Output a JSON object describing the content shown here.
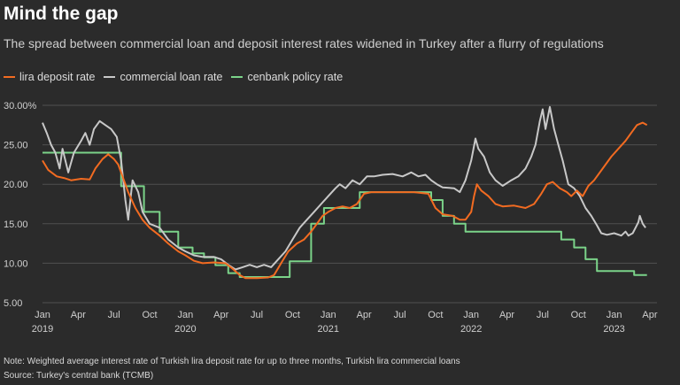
{
  "title": "Mind the gap",
  "subtitle": "The spread between commercial loan and deposit interest rates widened in Turkey after a flurry of regulations",
  "note": "Note: Weighted average interest rate of Turkish lira deposit rate for up to three months, Turkish lira commercial loans",
  "source": "Source: Turkey's central bank (TCMB)",
  "colors": {
    "background": "#2b2b2b",
    "deposit": "#f26b21",
    "loan": "#c8c8c8",
    "policy": "#7bd389",
    "grid": "#505050"
  },
  "chart_data": {
    "type": "line",
    "title": "Mind the gap",
    "xlabel": "",
    "ylabel": "",
    "ylim": [
      5,
      30
    ],
    "xlim": [
      2019.0,
      2023.3
    ],
    "grid": true,
    "legend_position": "top-left",
    "y_ticks": [
      "30.00%",
      "25.00",
      "20.00",
      "15.00",
      "10.00",
      "5.00"
    ],
    "x_ticks": [
      {
        "label": "Jan",
        "year": "2019",
        "x": 2019.0
      },
      {
        "label": "Apr",
        "year": "",
        "x": 2019.25
      },
      {
        "label": "Jul",
        "year": "",
        "x": 2019.5
      },
      {
        "label": "Oct",
        "year": "",
        "x": 2019.75
      },
      {
        "label": "Jan",
        "year": "2020",
        "x": 2020.0
      },
      {
        "label": "Apr",
        "year": "",
        "x": 2020.25
      },
      {
        "label": "Jul",
        "year": "",
        "x": 2020.5
      },
      {
        "label": "Oct",
        "year": "",
        "x": 2020.75
      },
      {
        "label": "Jan",
        "year": "2021",
        "x": 2021.0
      },
      {
        "label": "Apr",
        "year": "",
        "x": 2021.25
      },
      {
        "label": "Jul",
        "year": "",
        "x": 2021.5
      },
      {
        "label": "Oct",
        "year": "",
        "x": 2021.75
      },
      {
        "label": "Jan",
        "year": "2022",
        "x": 2022.0
      },
      {
        "label": "Apr",
        "year": "",
        "x": 2022.25
      },
      {
        "label": "Jul",
        "year": "",
        "x": 2022.5
      },
      {
        "label": "Oct",
        "year": "",
        "x": 2022.75
      },
      {
        "label": "Jan",
        "year": "2023",
        "x": 2023.0
      },
      {
        "label": "Apr",
        "year": "",
        "x": 2023.25
      }
    ],
    "series": [
      {
        "name": "lira deposit rate",
        "color": "#f26b21",
        "points": [
          [
            2019.0,
            23.0
          ],
          [
            2019.04,
            21.8
          ],
          [
            2019.1,
            21.0
          ],
          [
            2019.15,
            20.8
          ],
          [
            2019.2,
            20.5
          ],
          [
            2019.27,
            20.7
          ],
          [
            2019.33,
            20.6
          ],
          [
            2019.37,
            22.0
          ],
          [
            2019.42,
            23.2
          ],
          [
            2019.46,
            23.8
          ],
          [
            2019.5,
            23.2
          ],
          [
            2019.53,
            22.5
          ],
          [
            2019.56,
            21.0
          ],
          [
            2019.6,
            19.0
          ],
          [
            2019.65,
            17.0
          ],
          [
            2019.7,
            15.5
          ],
          [
            2019.75,
            14.5
          ],
          [
            2019.82,
            13.5
          ],
          [
            2019.88,
            12.5
          ],
          [
            2019.95,
            11.5
          ],
          [
            2020.0,
            11.0
          ],
          [
            2020.06,
            10.3
          ],
          [
            2020.12,
            10.0
          ],
          [
            2020.2,
            10.1
          ],
          [
            2020.28,
            10.0
          ],
          [
            2020.33,
            9.3
          ],
          [
            2020.38,
            8.5
          ],
          [
            2020.42,
            8.1
          ],
          [
            2020.5,
            8.1
          ],
          [
            2020.58,
            8.2
          ],
          [
            2020.62,
            8.5
          ],
          [
            2020.67,
            10.0
          ],
          [
            2020.72,
            11.5
          ],
          [
            2020.78,
            12.5
          ],
          [
            2020.83,
            13.0
          ],
          [
            2020.88,
            14.0
          ],
          [
            2020.92,
            15.0
          ],
          [
            2020.96,
            16.0
          ],
          [
            2021.0,
            16.5
          ],
          [
            2021.05,
            17.0
          ],
          [
            2021.1,
            17.2
          ],
          [
            2021.15,
            17.0
          ],
          [
            2021.2,
            17.5
          ],
          [
            2021.25,
            18.8
          ],
          [
            2021.3,
            19.0
          ],
          [
            2021.4,
            19.0
          ],
          [
            2021.5,
            19.0
          ],
          [
            2021.6,
            19.0
          ],
          [
            2021.7,
            18.8
          ],
          [
            2021.75,
            17.0
          ],
          [
            2021.8,
            16.2
          ],
          [
            2021.87,
            16.0
          ],
          [
            2021.92,
            15.5
          ],
          [
            2021.96,
            15.5
          ],
          [
            2022.0,
            16.5
          ],
          [
            2022.02,
            18.5
          ],
          [
            2022.04,
            20.0
          ],
          [
            2022.07,
            19.2
          ],
          [
            2022.12,
            18.5
          ],
          [
            2022.17,
            17.5
          ],
          [
            2022.22,
            17.2
          ],
          [
            2022.3,
            17.3
          ],
          [
            2022.38,
            17.0
          ],
          [
            2022.44,
            17.5
          ],
          [
            2022.49,
            18.8
          ],
          [
            2022.53,
            20.0
          ],
          [
            2022.57,
            20.3
          ],
          [
            2022.62,
            19.5
          ],
          [
            2022.67,
            19.0
          ],
          [
            2022.7,
            18.5
          ],
          [
            2022.74,
            19.2
          ],
          [
            2022.78,
            18.5
          ],
          [
            2022.82,
            19.8
          ],
          [
            2022.86,
            20.5
          ],
          [
            2022.92,
            22.0
          ],
          [
            2022.98,
            23.5
          ],
          [
            2023.03,
            24.5
          ],
          [
            2023.08,
            25.5
          ],
          [
            2023.12,
            26.5
          ],
          [
            2023.16,
            27.5
          ],
          [
            2023.2,
            27.8
          ],
          [
            2023.23,
            27.5
          ]
        ]
      },
      {
        "name": "commercial loan rate",
        "color": "#c8c8c8",
        "points": [
          [
            2019.0,
            27.8
          ],
          [
            2019.03,
            26.5
          ],
          [
            2019.06,
            25.0
          ],
          [
            2019.09,
            24.0
          ],
          [
            2019.12,
            22.0
          ],
          [
            2019.14,
            24.5
          ],
          [
            2019.18,
            21.5
          ],
          [
            2019.22,
            24.0
          ],
          [
            2019.27,
            25.5
          ],
          [
            2019.3,
            26.5
          ],
          [
            2019.33,
            25.0
          ],
          [
            2019.36,
            27.0
          ],
          [
            2019.4,
            28.0
          ],
          [
            2019.44,
            27.5
          ],
          [
            2019.48,
            27.0
          ],
          [
            2019.52,
            26.0
          ],
          [
            2019.55,
            23.0
          ],
          [
            2019.58,
            18.0
          ],
          [
            2019.6,
            15.5
          ],
          [
            2019.63,
            20.5
          ],
          [
            2019.67,
            19.0
          ],
          [
            2019.7,
            16.5
          ],
          [
            2019.75,
            15.0
          ],
          [
            2019.82,
            14.5
          ],
          [
            2019.88,
            13.0
          ],
          [
            2019.95,
            12.0
          ],
          [
            2020.0,
            11.5
          ],
          [
            2020.06,
            11.0
          ],
          [
            2020.12,
            10.8
          ],
          [
            2020.2,
            10.8
          ],
          [
            2020.25,
            10.5
          ],
          [
            2020.3,
            9.8
          ],
          [
            2020.35,
            9.2
          ],
          [
            2020.4,
            9.5
          ],
          [
            2020.45,
            9.8
          ],
          [
            2020.5,
            9.5
          ],
          [
            2020.55,
            9.8
          ],
          [
            2020.6,
            9.5
          ],
          [
            2020.65,
            10.5
          ],
          [
            2020.7,
            11.5
          ],
          [
            2020.75,
            13.0
          ],
          [
            2020.8,
            14.5
          ],
          [
            2020.85,
            15.5
          ],
          [
            2020.9,
            16.5
          ],
          [
            2020.95,
            17.5
          ],
          [
            2021.0,
            18.5
          ],
          [
            2021.05,
            19.5
          ],
          [
            2021.08,
            20.0
          ],
          [
            2021.12,
            19.5
          ],
          [
            2021.17,
            20.5
          ],
          [
            2021.22,
            20.0
          ],
          [
            2021.27,
            21.0
          ],
          [
            2021.32,
            21.0
          ],
          [
            2021.38,
            21.2
          ],
          [
            2021.45,
            21.3
          ],
          [
            2021.52,
            21.0
          ],
          [
            2021.58,
            21.5
          ],
          [
            2021.63,
            21.0
          ],
          [
            2021.68,
            21.2
          ],
          [
            2021.72,
            20.5
          ],
          [
            2021.76,
            20.0
          ],
          [
            2021.8,
            19.6
          ],
          [
            2021.88,
            19.5
          ],
          [
            2021.92,
            19.0
          ],
          [
            2021.96,
            20.5
          ],
          [
            2022.0,
            23.0
          ],
          [
            2022.03,
            25.8
          ],
          [
            2022.05,
            24.5
          ],
          [
            2022.09,
            23.5
          ],
          [
            2022.13,
            21.5
          ],
          [
            2022.17,
            20.5
          ],
          [
            2022.22,
            19.8
          ],
          [
            2022.28,
            20.5
          ],
          [
            2022.33,
            21.0
          ],
          [
            2022.38,
            22.0
          ],
          [
            2022.42,
            23.5
          ],
          [
            2022.45,
            25.0
          ],
          [
            2022.48,
            28.0
          ],
          [
            2022.5,
            29.5
          ],
          [
            2022.52,
            27.0
          ],
          [
            2022.55,
            29.8
          ],
          [
            2022.58,
            27.0
          ],
          [
            2022.61,
            25.0
          ],
          [
            2022.64,
            23.0
          ],
          [
            2022.68,
            20.0
          ],
          [
            2022.72,
            19.5
          ],
          [
            2022.76,
            18.5
          ],
          [
            2022.8,
            17.0
          ],
          [
            2022.84,
            16.0
          ],
          [
            2022.88,
            14.8
          ],
          [
            2022.91,
            13.8
          ],
          [
            2022.95,
            13.6
          ],
          [
            2023.0,
            13.8
          ],
          [
            2023.05,
            13.5
          ],
          [
            2023.08,
            14.0
          ],
          [
            2023.1,
            13.5
          ],
          [
            2023.13,
            13.8
          ],
          [
            2023.15,
            14.5
          ],
          [
            2023.17,
            15.2
          ],
          [
            2023.18,
            16.0
          ],
          [
            2023.2,
            15.0
          ],
          [
            2023.22,
            14.5
          ]
        ]
      },
      {
        "name": "cenbank policy rate",
        "color": "#7bd389",
        "points": [
          [
            2019.0,
            24.0
          ],
          [
            2019.55,
            24.0
          ],
          [
            2019.55,
            19.75
          ],
          [
            2019.71,
            19.75
          ],
          [
            2019.71,
            16.5
          ],
          [
            2019.82,
            16.5
          ],
          [
            2019.82,
            14.0
          ],
          [
            2019.95,
            14.0
          ],
          [
            2019.95,
            12.0
          ],
          [
            2020.05,
            12.0
          ],
          [
            2020.05,
            11.25
          ],
          [
            2020.13,
            11.25
          ],
          [
            2020.13,
            10.75
          ],
          [
            2020.21,
            10.75
          ],
          [
            2020.21,
            9.75
          ],
          [
            2020.3,
            9.75
          ],
          [
            2020.3,
            8.75
          ],
          [
            2020.38,
            8.75
          ],
          [
            2020.38,
            8.25
          ],
          [
            2020.73,
            8.25
          ],
          [
            2020.73,
            10.25
          ],
          [
            2020.88,
            10.25
          ],
          [
            2020.88,
            15.0
          ],
          [
            2020.97,
            15.0
          ],
          [
            2020.97,
            17.0
          ],
          [
            2021.22,
            17.0
          ],
          [
            2021.22,
            19.0
          ],
          [
            2021.72,
            19.0
          ],
          [
            2021.72,
            18.0
          ],
          [
            2021.8,
            18.0
          ],
          [
            2021.8,
            16.0
          ],
          [
            2021.88,
            16.0
          ],
          [
            2021.88,
            15.0
          ],
          [
            2021.96,
            15.0
          ],
          [
            2021.96,
            14.0
          ],
          [
            2022.63,
            14.0
          ],
          [
            2022.63,
            13.0
          ],
          [
            2022.72,
            13.0
          ],
          [
            2022.72,
            12.0
          ],
          [
            2022.8,
            12.0
          ],
          [
            2022.8,
            10.5
          ],
          [
            2022.88,
            10.5
          ],
          [
            2022.88,
            9.0
          ],
          [
            2023.14,
            9.0
          ],
          [
            2023.14,
            8.5
          ],
          [
            2023.23,
            8.5
          ]
        ]
      }
    ]
  }
}
